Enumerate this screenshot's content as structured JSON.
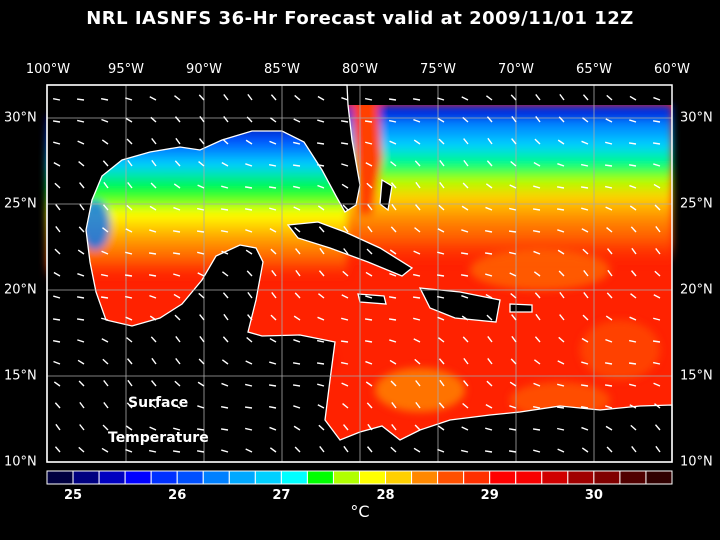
{
  "title": "NRL IASNFS  36-Hr Forecast valid at 2009/11/01 12Z",
  "lon_labels": [
    "100°W",
    "95°W",
    "90°W",
    "85°W",
    "80°W",
    "75°W",
    "70°W",
    "65°W",
    "60°W"
  ],
  "lat_labels": [
    "30°N",
    "25°N",
    "20°N",
    "15°N",
    "10°N"
  ],
  "overlay": {
    "line1": "Surface",
    "line2": "Temperature"
  },
  "colorbar": {
    "labels": [
      "25",
      "26",
      "27",
      "28",
      "29",
      "30"
    ],
    "unit": "°C",
    "colors": [
      "#000040",
      "#000080",
      "#0000c0",
      "#0000ff",
      "#0030ff",
      "#0050ff",
      "#0080ff",
      "#00a8ff",
      "#00d0ff",
      "#00ffff",
      "#00ff00",
      "#b0ff00",
      "#ffff00",
      "#ffd000",
      "#ff8800",
      "#ff5000",
      "#ff3000",
      "#ff0000",
      "#f80000",
      "#d00000",
      "#a00000",
      "#800000",
      "#500000",
      "#300000"
    ]
  }
}
